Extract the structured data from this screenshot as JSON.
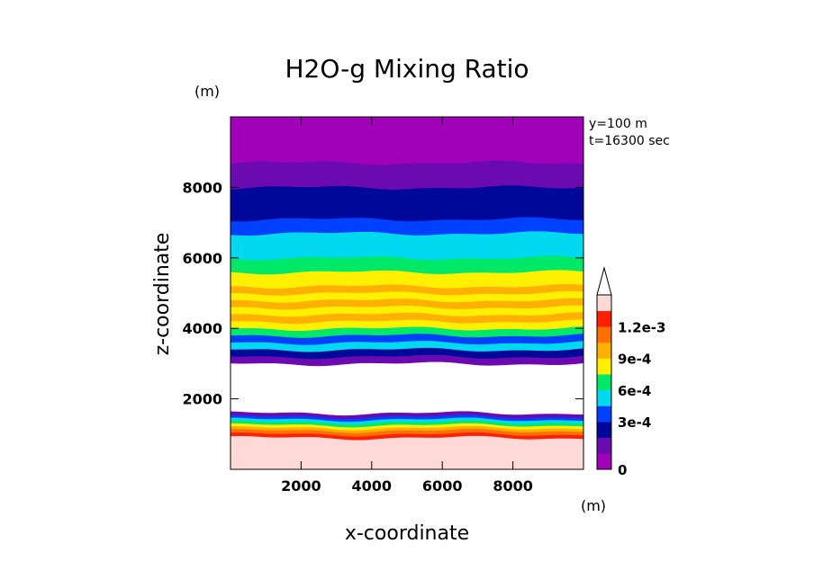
{
  "chart_data": {
    "type": "heatmap",
    "title": "H2O-g Mixing Ratio",
    "xlabel": "x-coordinate",
    "ylabel": "z-coordinate",
    "x_unit": "(m)",
    "y_unit": "(m)",
    "xlim": [
      0,
      10000
    ],
    "ylim": [
      0,
      10000
    ],
    "x_ticks": [
      2000,
      4000,
      6000,
      8000
    ],
    "y_ticks": [
      2000,
      4000,
      6000,
      8000
    ],
    "annotations": [
      "y=100 m",
      "t=16300 sec"
    ],
    "colorbar": {
      "levels": [
        0,
        0.00015,
        0.0003,
        0.00045,
        0.0006,
        0.00075,
        0.0009,
        0.00105,
        0.0012
      ],
      "labeled_levels": [
        "0",
        "3e-4",
        "6e-4",
        "9e-4",
        "1.2e-3"
      ],
      "colors": [
        "#a000b8",
        "#6a0ab0",
        "#00089a",
        "#0040ff",
        "#00d8f0",
        "#00e868",
        "#fff000",
        "#ffb000",
        "#ff7000",
        "#ff2000",
        "#ffd8d8"
      ],
      "extend": "max"
    },
    "layers": [
      {
        "z": [
          0,
          900
        ],
        "level": 10,
        "color": "#ffd8d8"
      },
      {
        "z": [
          900,
          1000
        ],
        "level": 9,
        "color": "#ff2000"
      },
      {
        "z": [
          1000,
          1100
        ],
        "level": 8,
        "color": "#ff7000"
      },
      {
        "z": [
          1100,
          1180
        ],
        "level": 7,
        "color": "#ffb000"
      },
      {
        "z": [
          1180,
          1260
        ],
        "level": 6,
        "color": "#fff000"
      },
      {
        "z": [
          1260,
          1340
        ],
        "level": 5,
        "color": "#00e868"
      },
      {
        "z": [
          1340,
          1420
        ],
        "level": 4,
        "color": "#00d8f0"
      },
      {
        "z": [
          1420,
          1500
        ],
        "level": 3,
        "color": "#0040ff"
      },
      {
        "z": [
          1500,
          1600
        ],
        "level": 1,
        "color": "#6a0ab0"
      },
      {
        "z": [
          1600,
          3000
        ],
        "level": null,
        "color": "#ffffff"
      },
      {
        "z": [
          3000,
          3200
        ],
        "level": 1,
        "color": "#6a0ab0"
      },
      {
        "z": [
          3200,
          3400
        ],
        "level": 2,
        "color": "#00089a"
      },
      {
        "z": [
          3400,
          3600
        ],
        "level": 4,
        "color": "#00d8f0"
      },
      {
        "z": [
          3600,
          3800
        ],
        "level": 3,
        "color": "#0040ff"
      },
      {
        "z": [
          3800,
          4000
        ],
        "level": 5,
        "color": "#00e868"
      },
      {
        "z": [
          4000,
          4200
        ],
        "level": 6,
        "color": "#fff000"
      },
      {
        "z": [
          4200,
          4400
        ],
        "level": 7,
        "color": "#ffb000"
      },
      {
        "z": [
          4400,
          4600
        ],
        "level": 6,
        "color": "#fff000"
      },
      {
        "z": [
          4600,
          4800
        ],
        "level": 7,
        "color": "#ffb000"
      },
      {
        "z": [
          4800,
          5000
        ],
        "level": 6,
        "color": "#fff000"
      },
      {
        "z": [
          5000,
          5200
        ],
        "level": 7,
        "color": "#ffb000"
      },
      {
        "z": [
          5200,
          5600
        ],
        "level": 6,
        "color": "#fff000"
      },
      {
        "z": [
          5600,
          6000
        ],
        "level": 5,
        "color": "#00e868"
      },
      {
        "z": [
          6000,
          6200
        ],
        "level": 4,
        "color": "#00d8f0"
      },
      {
        "z": [
          6200,
          6700
        ],
        "level": 4,
        "color": "#00d8f0"
      },
      {
        "z": [
          6700,
          7100
        ],
        "level": 3,
        "color": "#0040ff"
      },
      {
        "z": [
          7100,
          8000
        ],
        "level": 2,
        "color": "#00089a"
      },
      {
        "z": [
          8000,
          8700
        ],
        "level": 1,
        "color": "#6a0ab0"
      },
      {
        "z": [
          8700,
          10000
        ],
        "level": 0,
        "color": "#a000b8"
      }
    ]
  }
}
